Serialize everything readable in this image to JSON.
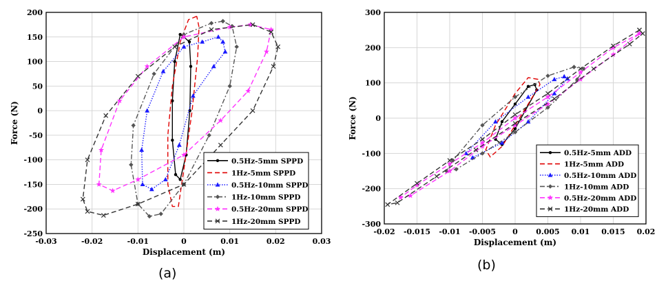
{
  "chart_data": [
    {
      "type": "line",
      "panel_label": "(a)",
      "xlabel": "Displacement (m)",
      "ylabel": "Force (N)",
      "xlim": [
        -0.03,
        0.03
      ],
      "ylim": [
        -250,
        200
      ],
      "xticks": [
        -0.03,
        -0.02,
        -0.01,
        0,
        0.01,
        0.02,
        0.03
      ],
      "yticks": [
        -250,
        -200,
        -150,
        -100,
        -50,
        0,
        50,
        100,
        150,
        200
      ],
      "xtick_labels": [
        "-0.03",
        "-0.02",
        "-0.01",
        "0",
        "0.01",
        "0.02",
        "0.03"
      ],
      "ytick_labels": [
        "-250",
        "-200",
        "-150",
        "-100",
        "-50",
        "0",
        "50",
        "100",
        "150",
        "200"
      ],
      "grid": true,
      "legend_position": "bottom-right",
      "series": [
        {
          "name": "0.5Hz-5mm SPPD",
          "color": "#000000",
          "dash": "solid",
          "marker": "dot",
          "points": [
            [
              0.0,
              150
            ],
            [
              -0.0008,
              155
            ],
            [
              -0.002,
              100
            ],
            [
              -0.0025,
              20
            ],
            [
              -0.0025,
              -60
            ],
            [
              -0.0018,
              -130
            ],
            [
              -0.0008,
              -140
            ],
            [
              0.0005,
              -90
            ],
            [
              0.0013,
              0
            ],
            [
              0.0015,
              90
            ],
            [
              0.0012,
              140
            ],
            [
              0.0,
              150
            ]
          ]
        },
        {
          "name": "1Hz-5mm SPPD",
          "color": "#e00000",
          "dash": "dashed",
          "marker": "none",
          "points": [
            [
              0.0028,
              192
            ],
            [
              0.001,
              185
            ],
            [
              -0.0008,
              140
            ],
            [
              -0.0025,
              50
            ],
            [
              -0.0035,
              -50
            ],
            [
              -0.0035,
              -150
            ],
            [
              -0.0025,
              -195
            ],
            [
              -0.0012,
              -195
            ],
            [
              0.0003,
              -100
            ],
            [
              0.0018,
              0
            ],
            [
              0.003,
              110
            ],
            [
              0.0033,
              170
            ],
            [
              0.0028,
              192
            ]
          ]
        },
        {
          "name": "0.5Hz-10mm SPPD",
          "color": "#1a1aff",
          "dash": "dotted",
          "marker": "triangle",
          "points": [
            [
              0.0085,
              140
            ],
            [
              0.0075,
              150
            ],
            [
              0.004,
              140
            ],
            [
              0.0,
              130
            ],
            [
              -0.0045,
              80
            ],
            [
              -0.008,
              0
            ],
            [
              -0.0092,
              -80
            ],
            [
              -0.009,
              -150
            ],
            [
              -0.007,
              -160
            ],
            [
              -0.004,
              -140
            ],
            [
              -0.001,
              -70
            ],
            [
              0.002,
              30
            ],
            [
              0.0065,
              90
            ],
            [
              0.009,
              120
            ],
            [
              0.0085,
              140
            ]
          ]
        },
        {
          "name": "1Hz-10mm SPPD",
          "color": "#555555",
          "dash": "dashdot",
          "marker": "diamond",
          "points": [
            [
              0.0085,
              182
            ],
            [
              0.006,
              178
            ],
            [
              0.0,
              155
            ],
            [
              -0.0065,
              75
            ],
            [
              -0.011,
              -30
            ],
            [
              -0.0115,
              -110
            ],
            [
              -0.01,
              -190
            ],
            [
              -0.0075,
              -215
            ],
            [
              -0.005,
              -210
            ],
            [
              0.0,
              -150
            ],
            [
              0.0055,
              -50
            ],
            [
              0.01,
              50
            ],
            [
              0.0115,
              130
            ],
            [
              0.0105,
              172
            ],
            [
              0.0085,
              182
            ]
          ]
        },
        {
          "name": "0.5Hz-20mm SPPD",
          "color": "#ff33ff",
          "dash": "dashed",
          "marker": "star",
          "points": [
            [
              0.0145,
              175
            ],
            [
              0.01,
              170
            ],
            [
              0.0,
              150
            ],
            [
              -0.008,
              90
            ],
            [
              -0.014,
              20
            ],
            [
              -0.018,
              -80
            ],
            [
              -0.0185,
              -150
            ],
            [
              -0.0155,
              -163
            ],
            [
              -0.01,
              -140
            ],
            [
              0.0,
              -90
            ],
            [
              0.008,
              -20
            ],
            [
              0.014,
              40
            ],
            [
              0.018,
              120
            ],
            [
              0.019,
              165
            ],
            [
              0.0145,
              175
            ]
          ]
        },
        {
          "name": "1Hz-20mm SPPD",
          "color": "#333333",
          "dash": "dashed",
          "marker": "x",
          "points": [
            [
              0.019,
              160
            ],
            [
              0.015,
              175
            ],
            [
              0.006,
              165
            ],
            [
              -0.002,
              130
            ],
            [
              -0.01,
              70
            ],
            [
              -0.017,
              -10
            ],
            [
              -0.021,
              -100
            ],
            [
              -0.022,
              -180
            ],
            [
              -0.021,
              -205
            ],
            [
              -0.0175,
              -213
            ],
            [
              -0.01,
              -190
            ],
            [
              0.0,
              -150
            ],
            [
              0.008,
              -70
            ],
            [
              0.015,
              0
            ],
            [
              0.0195,
              90
            ],
            [
              0.0205,
              130
            ],
            [
              0.019,
              160
            ]
          ]
        }
      ]
    },
    {
      "type": "line",
      "panel_label": "(b)",
      "xlabel": "Displacement (m)",
      "ylabel": "Force (N)",
      "xlim": [
        -0.02,
        0.02
      ],
      "ylim": [
        -300,
        300
      ],
      "xticks": [
        -0.02,
        -0.015,
        -0.01,
        -0.005,
        0,
        0.005,
        0.01,
        0.015,
        0.02
      ],
      "yticks": [
        -300,
        -200,
        -100,
        0,
        100,
        200,
        300
      ],
      "xtick_labels": [
        "-0.02",
        "-0.015",
        "-0.01",
        "-0.005",
        "0",
        "0.005",
        "0.01",
        "0.015",
        "0.02"
      ],
      "ytick_labels": [
        "-300",
        "-200",
        "-100",
        "0",
        "100",
        "200",
        "300"
      ],
      "grid": true,
      "legend_position": "bottom-right",
      "series": [
        {
          "name": "0.5Hz-5mm ADD",
          "color": "#000000",
          "dash": "solid",
          "marker": "dot",
          "points": [
            [
              0.003,
              95
            ],
            [
              0.002,
              90
            ],
            [
              0.0,
              40
            ],
            [
              -0.002,
              -10
            ],
            [
              -0.003,
              -60
            ],
            [
              -0.002,
              -75
            ],
            [
              0.0,
              -30
            ],
            [
              0.0015,
              20
            ],
            [
              0.0033,
              80
            ],
            [
              0.003,
              95
            ]
          ]
        },
        {
          "name": "1Hz-5mm ADD",
          "color": "#e00000",
          "dash": "dashed",
          "marker": "none",
          "points": [
            [
              0.0035,
              110
            ],
            [
              0.002,
              115
            ],
            [
              0.0,
              70
            ],
            [
              -0.003,
              -20
            ],
            [
              -0.0045,
              -90
            ],
            [
              -0.0038,
              -110
            ],
            [
              -0.002,
              -80
            ],
            [
              0.0,
              -20
            ],
            [
              0.002,
              40
            ],
            [
              0.0038,
              95
            ],
            [
              0.0035,
              110
            ]
          ]
        },
        {
          "name": "0.5Hz-10mm ADD",
          "color": "#1a1aff",
          "dash": "dotted",
          "marker": "triangle",
          "points": [
            [
              0.0075,
              118
            ],
            [
              0.006,
              110
            ],
            [
              0.002,
              60
            ],
            [
              -0.003,
              -10
            ],
            [
              -0.0075,
              -100
            ],
            [
              -0.0065,
              -112
            ],
            [
              -0.002,
              -70
            ],
            [
              0.002,
              -10
            ],
            [
              0.006,
              70
            ],
            [
              0.008,
              112
            ],
            [
              0.0075,
              118
            ]
          ]
        },
        {
          "name": "1Hz-10mm ADD",
          "color": "#555555",
          "dash": "dashdot",
          "marker": "diamond",
          "points": [
            [
              0.009,
              145
            ],
            [
              0.005,
              120
            ],
            [
              0.0,
              60
            ],
            [
              -0.005,
              -20
            ],
            [
              -0.0095,
              -120
            ],
            [
              -0.0105,
              -150
            ],
            [
              -0.009,
              -145
            ],
            [
              -0.005,
              -100
            ],
            [
              0.0,
              -40
            ],
            [
              0.005,
              30
            ],
            [
              0.0095,
              110
            ],
            [
              0.0105,
              140
            ],
            [
              0.009,
              145
            ]
          ]
        },
        {
          "name": "0.5Hz-20mm ADD",
          "color": "#ff33ff",
          "dash": "dashed",
          "marker": "star",
          "points": [
            [
              0.019,
              240
            ],
            [
              0.015,
              200
            ],
            [
              0.01,
              130
            ],
            [
              0.005,
              60
            ],
            [
              0.0,
              0
            ],
            [
              -0.005,
              -70
            ],
            [
              -0.01,
              -130
            ],
            [
              -0.015,
              -190
            ],
            [
              -0.0175,
              -225
            ],
            [
              -0.016,
              -220
            ],
            [
              -0.01,
              -150
            ],
            [
              -0.005,
              -80
            ],
            [
              0.0,
              -20
            ],
            [
              0.005,
              40
            ],
            [
              0.01,
              110
            ],
            [
              0.015,
              180
            ],
            [
              0.019,
              240
            ]
          ]
        },
        {
          "name": "1Hz-20mm ADD",
          "color": "#333333",
          "dash": "dashed",
          "marker": "x",
          "points": [
            [
              0.019,
              250
            ],
            [
              0.015,
              205
            ],
            [
              0.01,
              140
            ],
            [
              0.005,
              70
            ],
            [
              0.0,
              10
            ],
            [
              -0.005,
              -60
            ],
            [
              -0.01,
              -120
            ],
            [
              -0.015,
              -185
            ],
            [
              -0.0195,
              -245
            ],
            [
              -0.018,
              -240
            ],
            [
              -0.012,
              -165
            ],
            [
              -0.006,
              -90
            ],
            [
              0.0,
              -15
            ],
            [
              0.006,
              55
            ],
            [
              0.012,
              140
            ],
            [
              0.0175,
              210
            ],
            [
              0.0195,
              240
            ],
            [
              0.019,
              250
            ]
          ]
        }
      ]
    }
  ]
}
